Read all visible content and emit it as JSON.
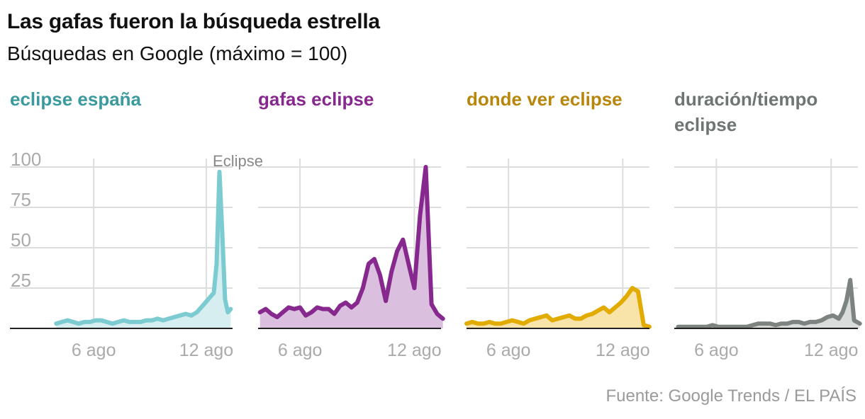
{
  "title": "Las gafas fueron la búsqueda estrella",
  "subtitle": "Búsquedas en Google (máximo = 100)",
  "source": "Fuente: Google Trends / EL PAÍS",
  "colors": {
    "grid": "#dddddd",
    "baseline": "#222222",
    "tick_text": "#aaaaaa",
    "annotation_text": "#888888"
  },
  "chart_data": [
    {
      "type": "area",
      "title": "eclipse españa",
      "color": "#7ccbd1",
      "title_color": "#3a9a9e",
      "fill": "#d6eef0",
      "x_ticks": [
        "6 ago",
        "12 ago"
      ],
      "y_ticks": [
        "100",
        "75",
        "50",
        "25"
      ],
      "ylim": [
        0,
        100
      ],
      "annotation": {
        "text": "Eclipse",
        "x": 12.7
      },
      "x": [
        4.0,
        4.3,
        4.6,
        4.9,
        5.2,
        5.5,
        5.8,
        6.1,
        6.4,
        6.7,
        7.0,
        7.3,
        7.6,
        7.9,
        8.2,
        8.5,
        8.8,
        9.1,
        9.4,
        9.7,
        10.0,
        10.3,
        10.6,
        10.9,
        11.2,
        11.5,
        11.8,
        12.1,
        12.4,
        12.55,
        12.7,
        12.85,
        13.0,
        13.15,
        13.3
      ],
      "values": [
        3,
        4,
        5,
        4,
        3,
        4,
        4,
        5,
        5,
        4,
        3,
        4,
        5,
        4,
        4,
        4,
        5,
        5,
        6,
        5,
        6,
        7,
        8,
        9,
        8,
        10,
        14,
        18,
        22,
        40,
        97,
        60,
        18,
        10,
        12
      ]
    },
    {
      "type": "area",
      "title": "gafas eclipse",
      "color": "#87288e",
      "title_color": "#87288e",
      "fill": "#dbbfdf",
      "x_ticks": [
        "6 ago",
        "12 ago"
      ],
      "x": [
        3.9,
        4.2,
        4.5,
        4.8,
        5.1,
        5.4,
        5.7,
        6.0,
        6.3,
        6.6,
        6.9,
        7.2,
        7.5,
        7.8,
        8.1,
        8.4,
        8.7,
        9.0,
        9.3,
        9.6,
        9.9,
        10.2,
        10.5,
        10.8,
        11.1,
        11.4,
        11.7,
        12.0,
        12.3,
        12.6,
        12.9,
        13.2,
        13.5
      ],
      "values": [
        10,
        12,
        9,
        7,
        10,
        13,
        12,
        13,
        8,
        10,
        13,
        12,
        12,
        9,
        14,
        16,
        13,
        16,
        25,
        40,
        43,
        33,
        17,
        35,
        48,
        55,
        40,
        25,
        70,
        100,
        15,
        9,
        6
      ]
    },
    {
      "type": "area",
      "title": "donde ver eclipse",
      "color": "#e2ab00",
      "title_color": "#b8860b",
      "fill": "#f8e3a8",
      "x_ticks": [
        "6 ago",
        "12 ago"
      ],
      "x": [
        3.8,
        4.1,
        4.4,
        4.7,
        5.0,
        5.3,
        5.6,
        5.9,
        6.2,
        6.5,
        6.8,
        7.1,
        7.4,
        7.7,
        8.0,
        8.3,
        8.6,
        8.9,
        9.2,
        9.5,
        9.8,
        10.1,
        10.4,
        10.7,
        11.0,
        11.3,
        11.6,
        11.9,
        12.2,
        12.5,
        12.8,
        13.1,
        13.4
      ],
      "values": [
        3,
        4,
        3,
        3,
        4,
        3,
        3,
        4,
        5,
        4,
        3,
        5,
        6,
        7,
        8,
        5,
        6,
        7,
        8,
        6,
        6,
        8,
        9,
        11,
        13,
        10,
        13,
        16,
        20,
        25,
        23,
        2,
        1
      ]
    },
    {
      "type": "area",
      "title": "duración/tiempo eclipse",
      "color": "#7d8480",
      "title_color": "#6e7572",
      "fill": "#dadcdb",
      "x_ticks": [
        "6 ago",
        "12 ago"
      ],
      "x": [
        4.0,
        4.3,
        4.6,
        4.9,
        5.2,
        5.5,
        5.8,
        6.1,
        6.4,
        6.7,
        7.0,
        7.3,
        7.6,
        7.9,
        8.2,
        8.5,
        8.8,
        9.1,
        9.4,
        9.7,
        10.0,
        10.3,
        10.6,
        10.9,
        11.2,
        11.5,
        11.8,
        12.1,
        12.4,
        12.6,
        12.8,
        13.0,
        13.2,
        13.5
      ],
      "values": [
        1,
        1,
        1,
        1,
        1,
        1,
        2,
        1,
        1,
        1,
        1,
        1,
        1,
        2,
        3,
        3,
        3,
        2,
        3,
        3,
        4,
        4,
        3,
        4,
        4,
        5,
        7,
        8,
        6,
        10,
        17,
        30,
        5,
        3
      ]
    }
  ]
}
